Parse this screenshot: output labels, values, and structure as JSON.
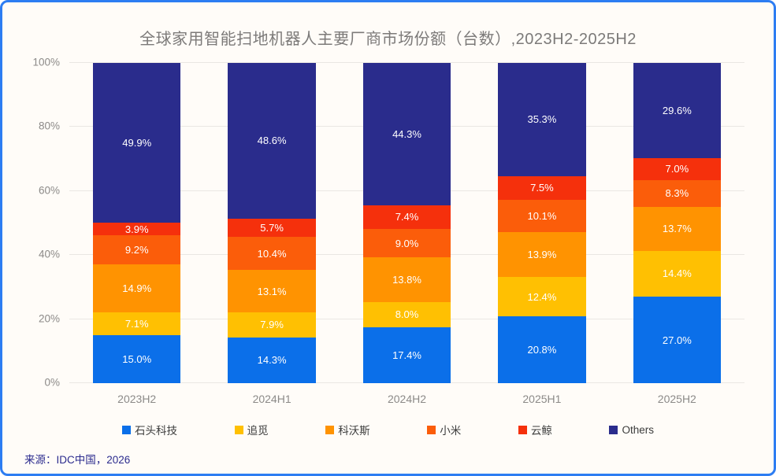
{
  "card": {
    "background": "#FFFCF8",
    "border_color": "#2D7DF2"
  },
  "title": "全球家用智能扫地机器人主要厂商市场份额（台数）,2023H2-2025H2",
  "source": "来源：IDC中国，2026",
  "chart_data": {
    "type": "bar",
    "stacked": true,
    "title": "全球家用智能扫地机器人主要厂商市场份额（台数）,2023H2-2025H2",
    "categories": [
      "2023H2",
      "2024H1",
      "2024H2",
      "2025H1",
      "2025H2"
    ],
    "series": [
      {
        "name": "石头科技",
        "color": "#0B6FE9",
        "values": [
          15.0,
          14.3,
          17.4,
          20.8,
          27.0
        ]
      },
      {
        "name": "追觅",
        "color": "#FFC002",
        "values": [
          7.1,
          7.9,
          8.0,
          12.4,
          14.4
        ]
      },
      {
        "name": "科沃斯",
        "color": "#FF9301",
        "values": [
          14.9,
          13.1,
          13.8,
          13.9,
          13.7
        ]
      },
      {
        "name": "小米",
        "color": "#FB5D0A",
        "values": [
          9.2,
          10.4,
          9.0,
          10.1,
          8.3
        ]
      },
      {
        "name": "云鲸",
        "color": "#F5300C",
        "values": [
          3.9,
          5.7,
          7.4,
          7.5,
          7.0
        ]
      },
      {
        "name": "Others",
        "color": "#2A2C8C",
        "values": [
          49.9,
          48.6,
          44.3,
          35.3,
          29.6
        ]
      }
    ],
    "y_ticks": [
      "0%",
      "20%",
      "40%",
      "60%",
      "80%",
      "100%"
    ],
    "y_tick_values": [
      0,
      20,
      40,
      60,
      80,
      100
    ],
    "ylim": [
      0,
      100
    ],
    "grid": true,
    "legend_position": "bottom",
    "value_label_suffix": "%",
    "value_label_decimals": 1
  }
}
